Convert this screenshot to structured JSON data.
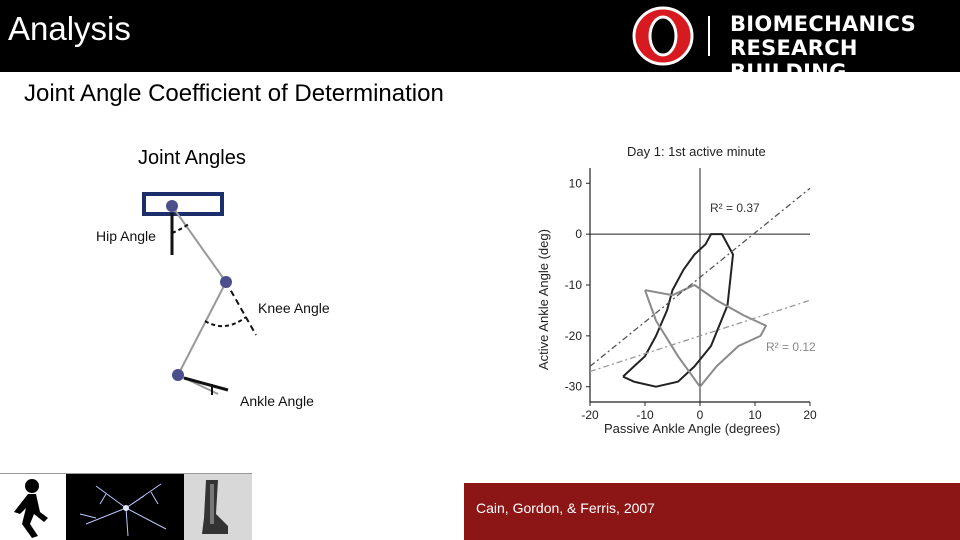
{
  "slide": {
    "title": "Analysis",
    "subtitle": "Joint Angle Coefficient of Determination",
    "logo": {
      "line1": "BIOMECHANICS",
      "line2": "RESEARCH BUILDING"
    }
  },
  "diagram": {
    "title": "Joint Angles",
    "hip_label": "Hip Angle",
    "knee_label": "Knee Angle",
    "ankle_label": "Ankle Angle"
  },
  "chart_data": {
    "type": "line",
    "title": "Day 1: 1st active minute",
    "xlabel": "Passive Ankle Angle (degrees)",
    "ylabel": "Active Ankle Angle (deg)",
    "xlim": [
      -20,
      20
    ],
    "ylim": [
      -33,
      13
    ],
    "xticks": [
      "-20",
      "-10",
      "0",
      "10",
      "20"
    ],
    "yticks": [
      "10",
      "0",
      "-10",
      "-20",
      "-30"
    ],
    "series": [
      {
        "name": "Dark loop",
        "color": "#222222",
        "kind": "loop",
        "x": [
          -14,
          -10,
          -8,
          -6,
          -5,
          -3,
          -1,
          1,
          2,
          4,
          6,
          5,
          2,
          -1,
          -4,
          -8,
          -12,
          -14
        ],
        "y": [
          -28,
          -24,
          -20,
          -15,
          -11,
          -7,
          -4,
          -2,
          0,
          0,
          -4,
          -14,
          -22,
          -26,
          -29,
          -30,
          -29,
          -28
        ]
      },
      {
        "name": "Gray loop",
        "color": "#8a8a8a",
        "kind": "loop",
        "x": [
          -10,
          -5,
          -1,
          3,
          8,
          12,
          11,
          7,
          3,
          0,
          -4,
          -8,
          -10
        ],
        "y": [
          -11,
          -12,
          -10,
          -13,
          -16,
          -18,
          -20,
          -22,
          -26,
          -30,
          -24,
          -17,
          -11
        ]
      },
      {
        "name": "Fit R2 = 0.37",
        "color": "#555555",
        "kind": "dashdot",
        "x": [
          -20,
          20
        ],
        "y": [
          -26,
          9
        ]
      },
      {
        "name": "Fit R2 = 0.12",
        "color": "#999999",
        "kind": "dashdot",
        "x": [
          -20,
          20
        ],
        "y": [
          -27,
          -13
        ]
      }
    ],
    "annotations": [
      "R² = 0.37",
      "R² = 0.12"
    ],
    "grid": false
  },
  "citation": "Cain, Gordon, & Ferris, 2007",
  "footer": {
    "icons": [
      "walking-person-icon",
      "neuron-image",
      "ankle-orthosis-image"
    ]
  },
  "colors": {
    "header": "#000000",
    "citation_bg": "#8c1515"
  }
}
